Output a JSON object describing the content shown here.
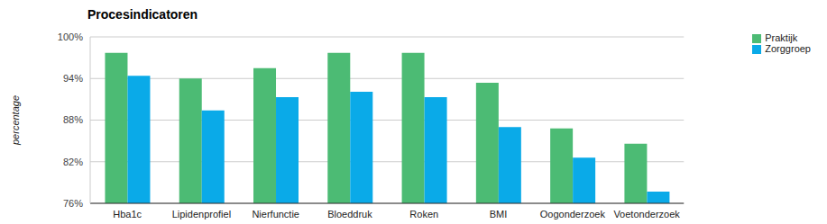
{
  "chart_data": {
    "type": "bar",
    "title": "Procesindicatoren",
    "y_label": "percentage",
    "categories": [
      "Hba1c",
      "Lipidenprofiel",
      "Nierfunctie",
      "Bloeddruk",
      "Roken",
      "BMI",
      "Oogonderzoek",
      "Voetonderzoek"
    ],
    "series": [
      {
        "name": "Praktijk",
        "color": "#4cbb74",
        "values": [
          97.7,
          94.0,
          95.5,
          97.7,
          97.7,
          93.4,
          86.8,
          84.6
        ]
      },
      {
        "name": "Zorggroep",
        "color": "#0aaae8",
        "values": [
          94.4,
          89.4,
          91.3,
          92.1,
          91.3,
          87.0,
          82.6,
          77.7
        ]
      }
    ],
    "ylim": [
      76,
      100
    ],
    "yticks": [
      {
        "value": 76,
        "label": "76%"
      },
      {
        "value": 82,
        "label": "82%"
      },
      {
        "value": 88,
        "label": "88%"
      },
      {
        "value": 94,
        "label": "94%"
      },
      {
        "value": 100,
        "label": "100%"
      }
    ],
    "grid": true,
    "legend": "top-right"
  }
}
